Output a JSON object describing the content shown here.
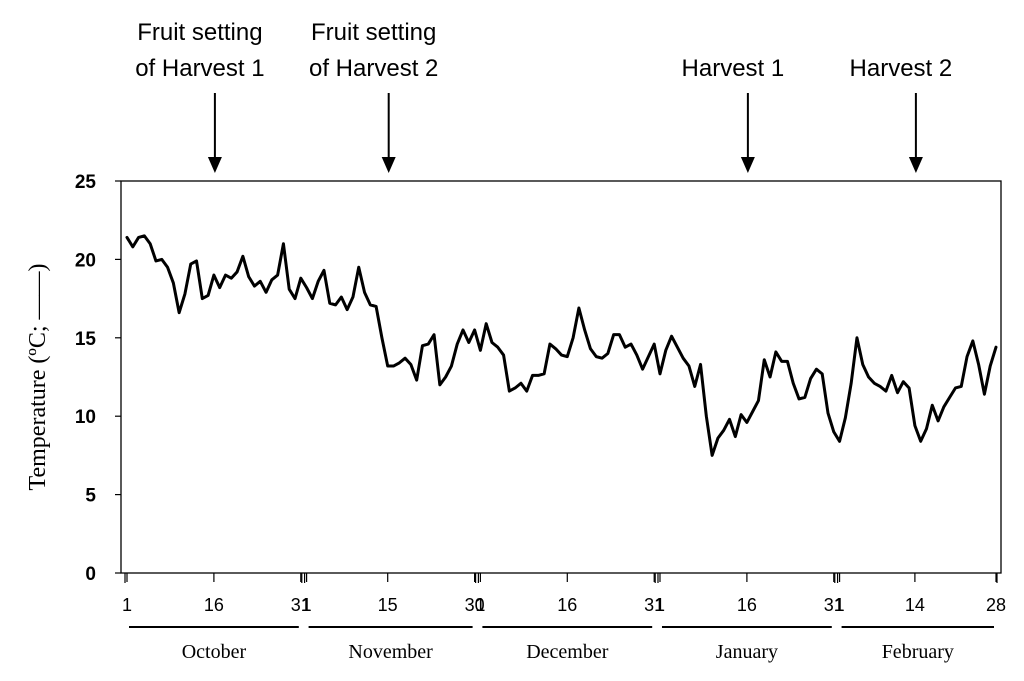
{
  "chart_data": {
    "type": "line",
    "title": "",
    "ylabel": "Temperature (ºC; ——)",
    "ylim": [
      0,
      25
    ],
    "yticks": [
      "0",
      "5",
      "10",
      "15",
      "20",
      "25"
    ],
    "grid": false,
    "months": [
      {
        "name": "October",
        "days": 31,
        "tick_labels": [
          "1",
          "16",
          "31"
        ],
        "tick_days": [
          1,
          16,
          31
        ]
      },
      {
        "name": "November",
        "days": 30,
        "tick_labels": [
          "1",
          "15",
          "30"
        ],
        "tick_days": [
          1,
          15,
          30
        ]
      },
      {
        "name": "December",
        "days": 31,
        "tick_labels": [
          "1",
          "16",
          "31"
        ],
        "tick_days": [
          1,
          16,
          31
        ]
      },
      {
        "name": "January",
        "days": 31,
        "tick_labels": [
          "1",
          "16",
          "31"
        ],
        "tick_days": [
          1,
          16,
          31
        ]
      },
      {
        "name": "February",
        "days": 28,
        "tick_labels": [
          "1",
          "14",
          "28"
        ],
        "tick_days": [
          1,
          14,
          28
        ]
      }
    ],
    "series": [
      {
        "values": [
          21.4,
          20.8,
          21.4,
          21.5,
          21.0,
          19.9,
          20.0,
          19.5,
          18.5,
          16.6,
          17.8,
          19.7,
          19.9,
          17.5,
          17.7,
          19.0,
          18.2,
          19.0,
          18.8,
          19.2,
          20.2,
          18.9,
          18.3,
          18.6,
          17.9,
          18.7,
          19.0,
          21.0,
          18.1,
          17.5,
          18.8,
          18.2,
          17.5,
          18.6,
          19.3,
          17.2,
          17.1,
          17.6,
          16.8,
          17.6,
          19.5,
          17.9,
          17.1,
          17.0,
          15.0,
          13.2,
          13.2,
          13.4,
          13.7,
          13.3,
          12.3,
          14.5,
          14.6,
          15.2,
          12.0,
          12.5,
          13.2,
          14.6,
          15.5,
          14.7,
          15.5,
          14.2,
          15.9,
          14.7,
          14.4,
          13.9,
          11.6,
          11.8,
          12.1,
          11.6,
          12.6,
          12.6,
          12.7,
          14.6,
          14.3,
          13.9,
          13.8,
          15.0,
          16.9,
          15.5,
          14.3,
          13.8,
          13.7,
          14.0,
          15.2,
          15.2,
          14.4,
          14.6,
          13.9,
          13.0,
          13.8,
          14.6,
          12.7,
          14.2,
          15.1,
          14.4,
          13.7,
          13.2,
          11.9,
          13.3,
          10.0,
          7.5,
          8.6,
          9.1,
          9.8,
          8.7,
          10.1,
          9.6,
          10.3,
          11.0,
          13.6,
          12.5,
          14.1,
          13.5,
          13.5,
          12.1,
          11.1,
          11.2,
          12.4,
          13.0,
          12.7,
          10.2,
          9.0,
          8.4,
          9.9,
          12.1,
          15.0,
          13.3,
          12.5,
          12.1,
          11.9,
          11.6,
          12.6,
          11.5,
          12.2,
          11.8,
          9.4,
          8.4,
          9.2,
          10.7,
          9.7,
          10.6,
          11.2,
          11.8,
          11.9,
          13.8,
          14.8,
          13.3,
          11.4,
          13.2,
          14.4
        ]
      }
    ],
    "annotations": [
      {
        "lines": [
          "Fruit setting",
          "of Harvest 1"
        ],
        "day_index": 16
      },
      {
        "lines": [
          "Fruit setting",
          "of Harvest 2"
        ],
        "day_index": 46
      },
      {
        "lines": [
          "Harvest 1"
        ],
        "day_index": 108
      },
      {
        "lines": [
          "Harvest 2"
        ],
        "day_index": 137
      }
    ]
  }
}
